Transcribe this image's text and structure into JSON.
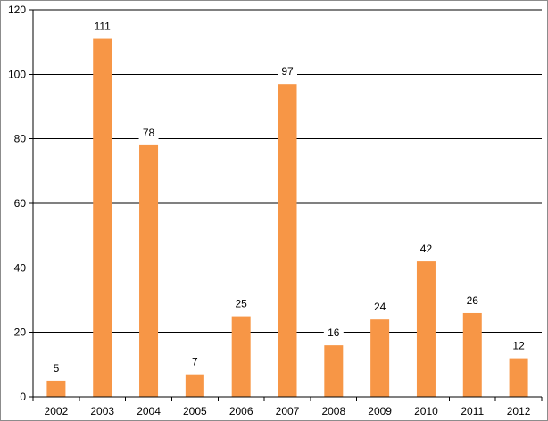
{
  "chart_data": {
    "type": "bar",
    "title": "",
    "xlabel": "",
    "ylabel": "",
    "categories": [
      "2002",
      "2003",
      "2004",
      "2005",
      "2006",
      "2007",
      "2008",
      "2009",
      "2010",
      "2011",
      "2012"
    ],
    "values": [
      5,
      111,
      78,
      7,
      25,
      97,
      16,
      24,
      42,
      26,
      12
    ],
    "data_labels": [
      "5",
      "111",
      "78",
      "7",
      "25",
      "97",
      "16",
      "24",
      "42",
      "26",
      "12"
    ],
    "ylim": [
      0,
      120
    ],
    "yticks": [
      0,
      20,
      40,
      60,
      80,
      100,
      120
    ],
    "ytick_labels": [
      "0",
      "20",
      "40",
      "60",
      "80",
      "100",
      "120"
    ],
    "grid": true,
    "legend": "none",
    "colors": {
      "bar": "#f79646",
      "grid": "#000000",
      "border": "#8c8c8c"
    }
  }
}
